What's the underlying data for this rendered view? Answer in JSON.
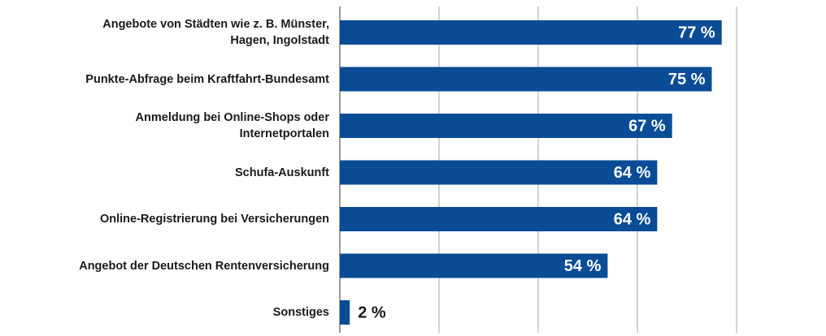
{
  "chart_data": {
    "type": "bar",
    "orientation": "horizontal",
    "categories": [
      "Angebote von Städten wie z. B. Münster,\nHagen, Ingolstadt",
      "Punkte-Abfrage beim Kraftfahrt-Bundesamt",
      "Anmeldung bei Online-Shops oder\nInternetportalen",
      "Schufa-Auskunft",
      "Online-Registrierung bei Versicherungen",
      "Angebot der Deutschen Rentenversicherung",
      "Sonstiges"
    ],
    "values": [
      77,
      75,
      67,
      64,
      64,
      54,
      2
    ],
    "value_labels": [
      "77 %",
      "75 %",
      "67 %",
      "64 %",
      "64 %",
      "54 %",
      "2 %"
    ],
    "color": "#0a4c96",
    "xlim": [
      0,
      80
    ],
    "xticks": [
      0,
      20,
      40,
      60,
      80
    ],
    "grid": true
  }
}
